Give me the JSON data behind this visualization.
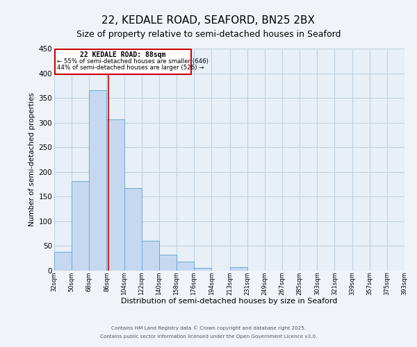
{
  "title": "22, KEDALE ROAD, SEAFORD, BN25 2BX",
  "subtitle": "Size of property relative to semi-detached houses in Seaford",
  "xlabel": "Distribution of semi-detached houses by size in Seaford",
  "ylabel": "Number of semi-detached properties",
  "bin_edges": [
    32,
    50,
    68,
    86,
    104,
    122,
    140,
    158,
    176,
    194,
    213,
    231,
    249,
    267,
    285,
    303,
    321,
    339,
    357,
    375,
    393
  ],
  "bin_labels": [
    "32sqm",
    "50sqm",
    "68sqm",
    "86sqm",
    "104sqm",
    "122sqm",
    "140sqm",
    "158sqm",
    "176sqm",
    "194sqm",
    "213sqm",
    "231sqm",
    "249sqm",
    "267sqm",
    "285sqm",
    "303sqm",
    "321sqm",
    "339sqm",
    "357sqm",
    "375sqm",
    "393sqm"
  ],
  "counts": [
    38,
    182,
    365,
    307,
    167,
    60,
    33,
    18,
    5,
    0,
    7,
    0,
    0,
    0,
    0,
    0,
    0,
    0,
    0,
    0
  ],
  "bar_color": "#c5d8f0",
  "bar_edge_color": "#6aaad4",
  "property_line_x": 88,
  "annotation_title": "22 KEDALE ROAD: 88sqm",
  "annotation_line1": "← 55% of semi-detached houses are smaller (646)",
  "annotation_line2": "44% of semi-detached houses are larger (526) →",
  "annotation_box_color": "#ffffff",
  "annotation_box_edge": "#cc0000",
  "property_line_color": "#cc0000",
  "ylim": [
    0,
    450
  ],
  "background_color": "#f0f4f8",
  "plot_bg_color": "#e8eff7",
  "footer1": "Contains HM Land Registry data © Crown copyright and database right 2025.",
  "footer2": "Contains public sector information licensed under the Open Government Licence v3.0.",
  "grid_color": "#c0d0e0",
  "title_fontsize": 11,
  "subtitle_fontsize": 9
}
